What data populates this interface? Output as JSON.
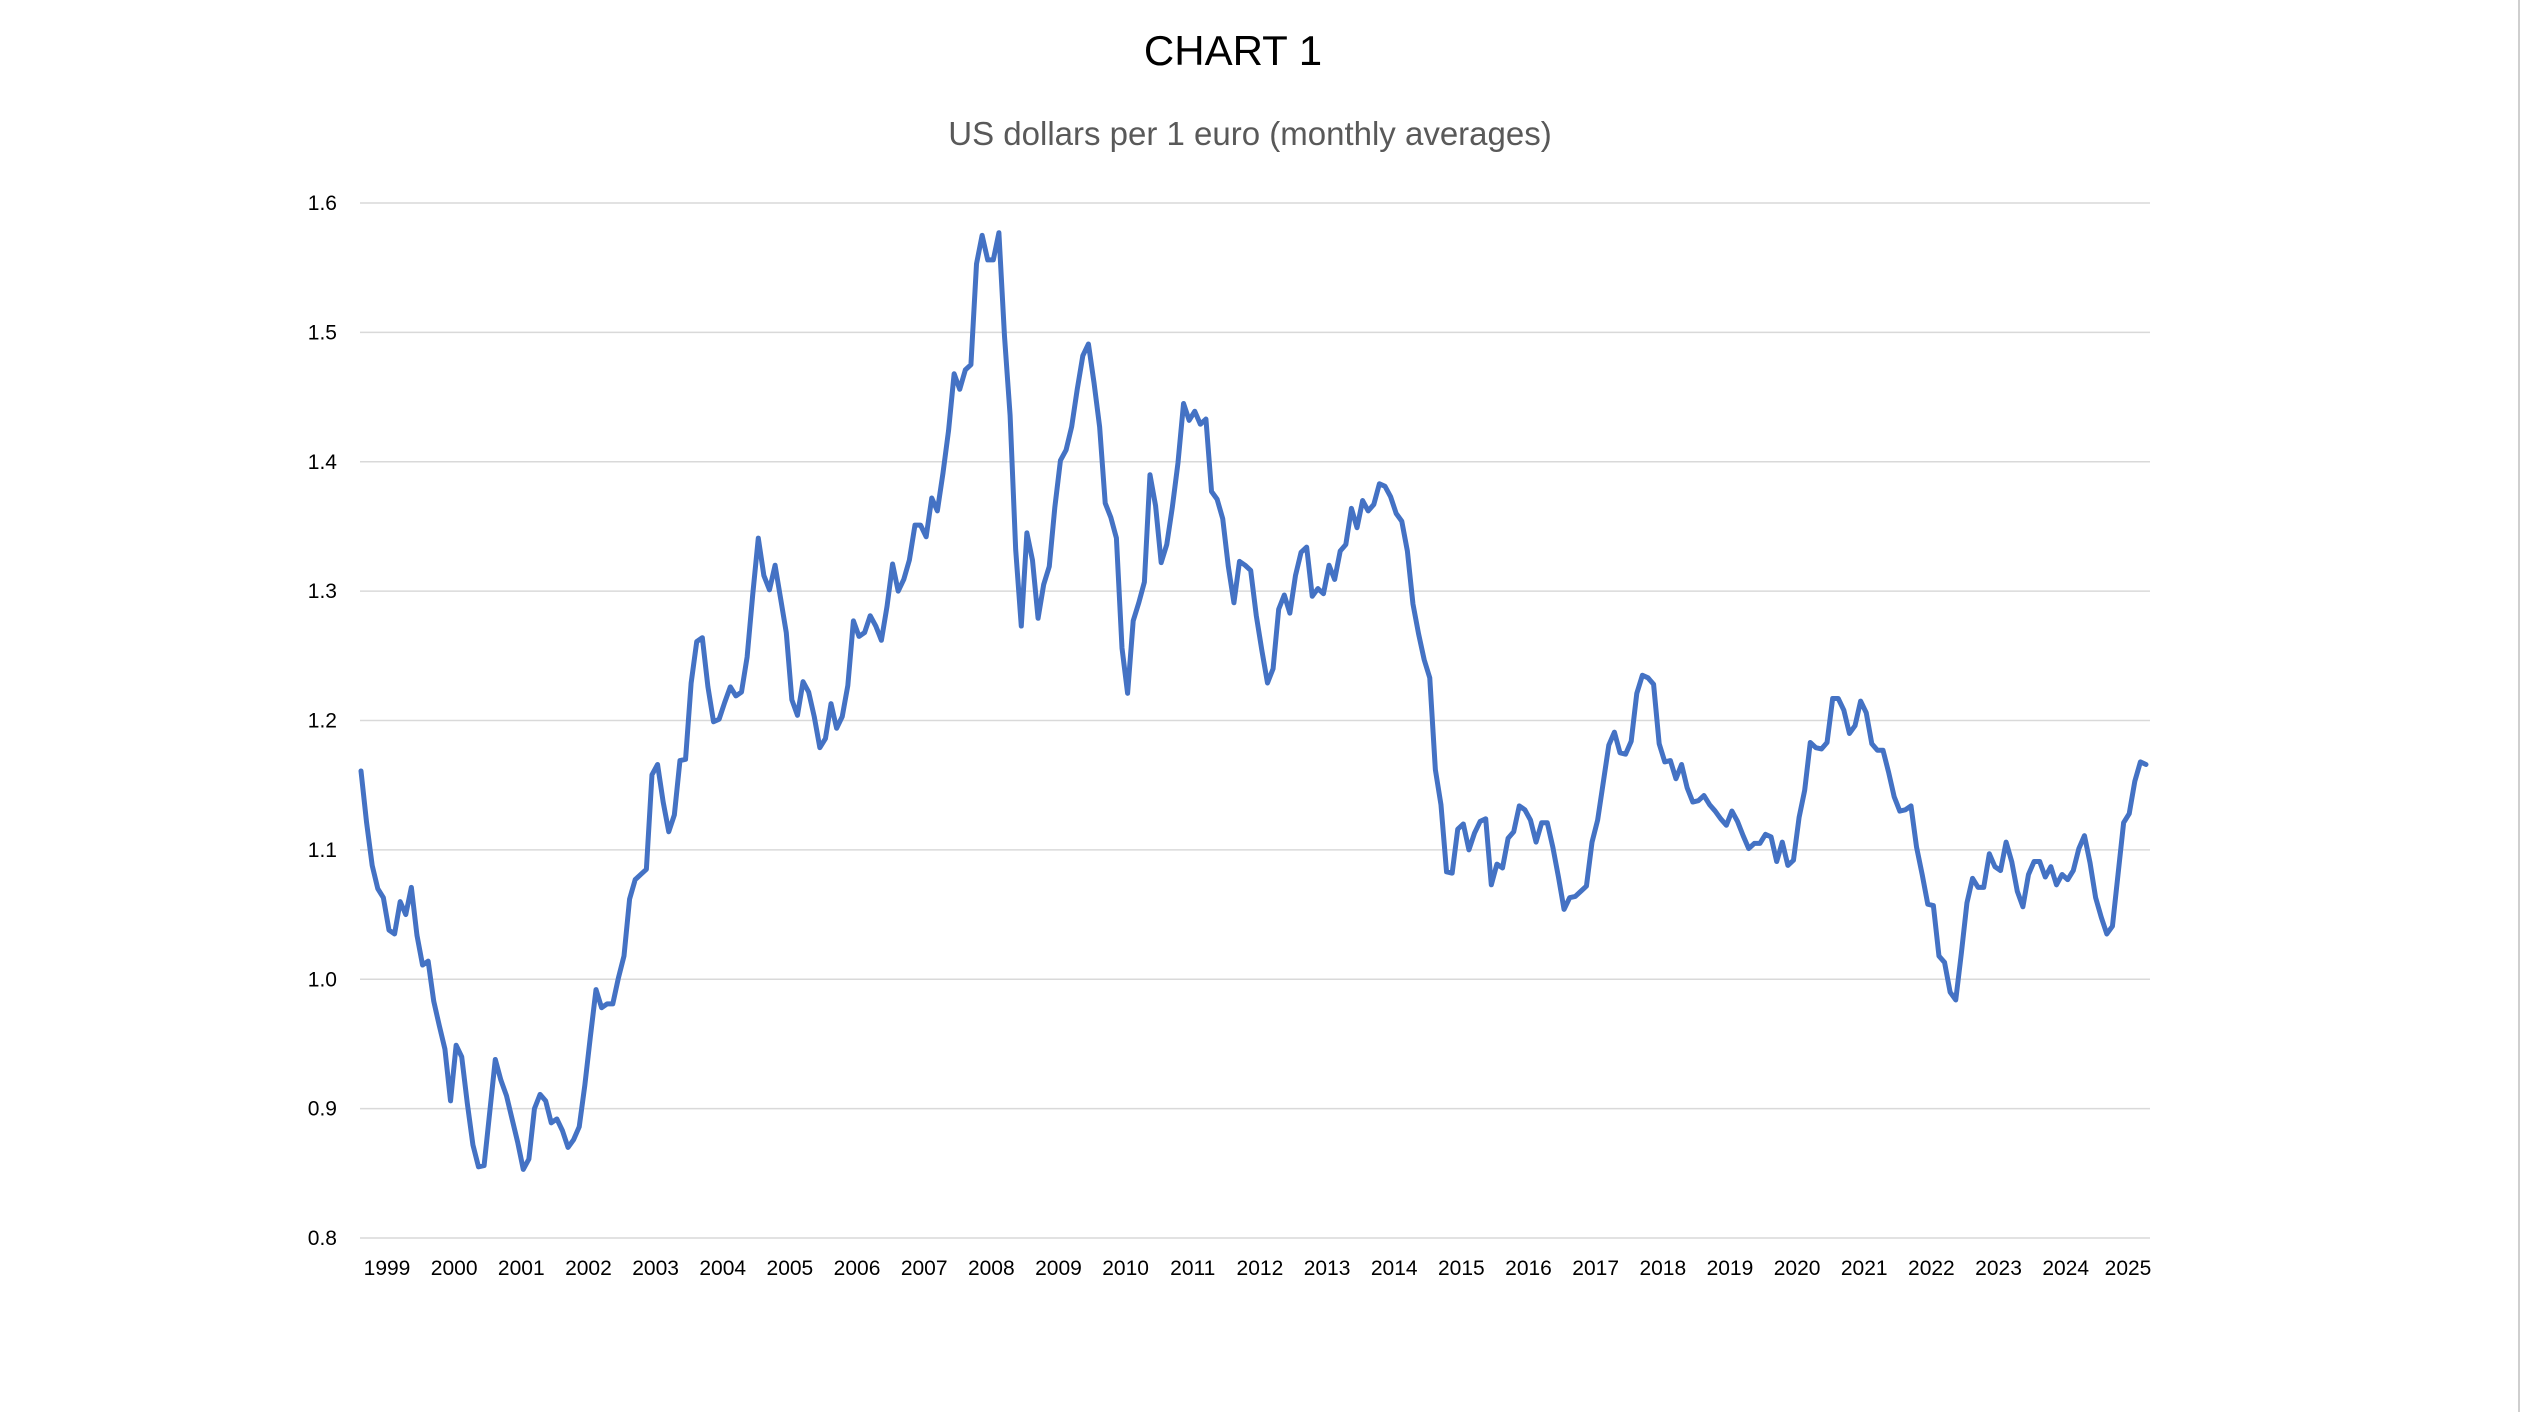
{
  "chart_data": {
    "type": "line",
    "title": "CHART 1",
    "subtitle": "US dollars per 1 euro (monthly averages)",
    "xlabel": "",
    "ylabel": "",
    "ylim": [
      0.8,
      1.6
    ],
    "yticks": [
      "0.8",
      "0.9",
      "1.0",
      "1.1",
      "1.2",
      "1.3",
      "1.4",
      "1.5",
      "1.6"
    ],
    "xticks": [
      "1999",
      "2000",
      "2001",
      "2002",
      "2003",
      "2004",
      "2005",
      "2006",
      "2007",
      "2008",
      "2009",
      "2010",
      "2011",
      "2012",
      "2013",
      "2014",
      "2015",
      "2016",
      "2017",
      "2018",
      "2019",
      "2020",
      "2021",
      "2022",
      "2023",
      "2024",
      "2025"
    ],
    "grid": true,
    "legend": "none",
    "colors": {
      "series": "#4472c4",
      "grid": "#d9d9d9"
    },
    "x_start": "1999-01",
    "x_frequency": "monthly",
    "series": [
      {
        "name": "USD per EUR",
        "values": [
          1.161,
          1.121,
          1.088,
          1.07,
          1.063,
          1.038,
          1.035,
          1.06,
          1.05,
          1.071,
          1.034,
          1.011,
          1.014,
          0.983,
          0.964,
          0.946,
          0.906,
          0.949,
          0.94,
          0.904,
          0.872,
          0.855,
          0.856,
          0.897,
          0.938,
          0.922,
          0.91,
          0.892,
          0.874,
          0.853,
          0.861,
          0.9,
          0.911,
          0.906,
          0.889,
          0.892,
          0.883,
          0.87,
          0.876,
          0.886,
          0.918,
          0.956,
          0.992,
          0.978,
          0.981,
          0.981,
          1.001,
          1.018,
          1.062,
          1.077,
          1.081,
          1.085,
          1.158,
          1.166,
          1.137,
          1.114,
          1.127,
          1.169,
          1.17,
          1.229,
          1.261,
          1.264,
          1.226,
          1.199,
          1.201,
          1.214,
          1.226,
          1.219,
          1.222,
          1.249,
          1.297,
          1.341,
          1.312,
          1.301,
          1.32,
          1.294,
          1.268,
          1.216,
          1.204,
          1.23,
          1.222,
          1.203,
          1.179,
          1.186,
          1.213,
          1.194,
          1.203,
          1.227,
          1.277,
          1.265,
          1.268,
          1.281,
          1.273,
          1.262,
          1.288,
          1.321,
          1.3,
          1.309,
          1.324,
          1.351,
          1.351,
          1.342,
          1.372,
          1.362,
          1.391,
          1.424,
          1.468,
          1.456,
          1.471,
          1.475,
          1.553,
          1.575,
          1.556,
          1.556,
          1.577,
          1.497,
          1.436,
          1.332,
          1.273,
          1.345,
          1.324,
          1.279,
          1.305,
          1.319,
          1.365,
          1.401,
          1.409,
          1.427,
          1.456,
          1.482,
          1.491,
          1.461,
          1.427,
          1.368,
          1.357,
          1.341,
          1.256,
          1.221,
          1.277,
          1.291,
          1.307,
          1.39,
          1.366,
          1.322,
          1.336,
          1.365,
          1.399,
          1.445,
          1.432,
          1.439,
          1.429,
          1.433,
          1.377,
          1.371,
          1.356,
          1.319,
          1.291,
          1.323,
          1.32,
          1.316,
          1.281,
          1.254,
          1.229,
          1.24,
          1.286,
          1.297,
          1.283,
          1.312,
          1.33,
          1.334,
          1.296,
          1.302,
          1.298,
          1.32,
          1.309,
          1.331,
          1.336,
          1.364,
          1.349,
          1.37,
          1.362,
          1.367,
          1.383,
          1.381,
          1.373,
          1.36,
          1.354,
          1.331,
          1.29,
          1.267,
          1.247,
          1.233,
          1.162,
          1.135,
          1.083,
          1.082,
          1.116,
          1.12,
          1.1,
          1.113,
          1.122,
          1.124,
          1.073,
          1.089,
          1.086,
          1.109,
          1.114,
          1.134,
          1.131,
          1.123,
          1.106,
          1.121,
          1.121,
          1.102,
          1.079,
          1.054,
          1.063,
          1.064,
          1.068,
          1.072,
          1.106,
          1.123,
          1.152,
          1.181,
          1.191,
          1.175,
          1.174,
          1.184,
          1.221,
          1.235,
          1.233,
          1.228,
          1.182,
          1.168,
          1.169,
          1.155,
          1.166,
          1.148,
          1.137,
          1.138,
          1.142,
          1.135,
          1.13,
          1.124,
          1.119,
          1.13,
          1.122,
          1.111,
          1.101,
          1.105,
          1.105,
          1.112,
          1.11,
          1.091,
          1.106,
          1.088,
          1.092,
          1.125,
          1.146,
          1.183,
          1.179,
          1.178,
          1.183,
          1.217,
          1.217,
          1.208,
          1.19,
          1.196,
          1.215,
          1.206,
          1.182,
          1.177,
          1.177,
          1.16,
          1.141,
          1.13,
          1.131,
          1.134,
          1.102,
          1.081,
          1.058,
          1.057,
          1.018,
          1.013,
          0.99,
          0.984,
          1.02,
          1.059,
          1.078,
          1.071,
          1.071,
          1.097,
          1.087,
          1.084,
          1.106,
          1.091,
          1.068,
          1.056,
          1.081,
          1.091,
          1.091,
          1.079,
          1.087,
          1.073,
          1.081,
          1.077,
          1.084,
          1.101,
          1.111,
          1.09,
          1.063,
          1.048,
          1.035,
          1.041,
          1.081,
          1.121,
          1.128,
          1.153,
          1.168,
          1.166
        ]
      }
    ]
  }
}
